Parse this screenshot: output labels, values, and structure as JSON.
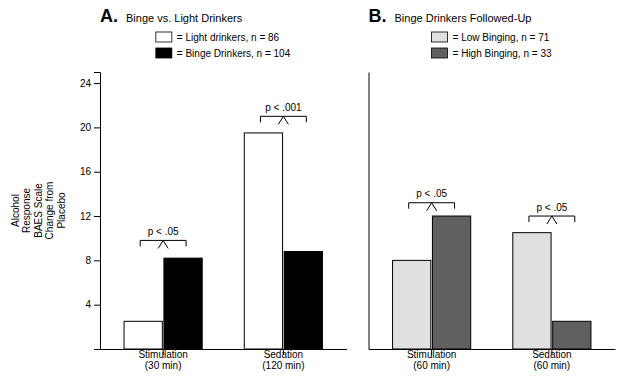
{
  "chart_data": [
    {
      "type": "bar",
      "title": "A.",
      "subtitle": "Binge vs. Light Drinkers",
      "y_label": "Alcohol\nResponse\nBAES Scale\nChange from\nPlacebo",
      "categories": [
        "Stimulation\n(30 min)",
        "Sedation\n(120 min)"
      ],
      "series": [
        {
          "name": "= Light drinkers, n = 86",
          "color": "white",
          "values": [
            2.5,
            19.5
          ]
        },
        {
          "name": "= Binge Drinkers, n = 104",
          "color": "black",
          "values": [
            8.2,
            8.8
          ]
        }
      ],
      "annotations": [
        {
          "text": "p  <  .05",
          "y": 9.8,
          "text_y": 10.2
        },
        {
          "text": "p  <  .001",
          "y": 21.0,
          "text_y": 21.4
        }
      ],
      "ylim": [
        0,
        25
      ],
      "yticks": [
        4,
        8,
        12,
        16,
        20,
        24
      ],
      "grid": false,
      "legend": "top"
    },
    {
      "type": "bar",
      "title": "B.",
      "subtitle": "Binge Drinkers Followed-Up",
      "categories": [
        "Stimulation\n(60 min)",
        "Sedation\n(60 min)"
      ],
      "series": [
        {
          "name": "= Low Binging, n = 71",
          "color": "#e0e0e0",
          "values": [
            8.0,
            10.5
          ]
        },
        {
          "name": "= High Binging, n = 33",
          "color": "#606060",
          "values": [
            12.0,
            2.5
          ]
        }
      ],
      "annotations": [
        {
          "text": "p  <  .05",
          "y": 13.2,
          "text_y": 13.6
        },
        {
          "text": "p  <  .05",
          "y": 12.0,
          "text_y": 12.4
        }
      ],
      "ylim": [
        0,
        25
      ],
      "yticks": [
        4,
        8,
        12,
        16,
        20,
        24
      ],
      "grid": false,
      "legend": "top",
      "tick_labels": "x"
    }
  ]
}
